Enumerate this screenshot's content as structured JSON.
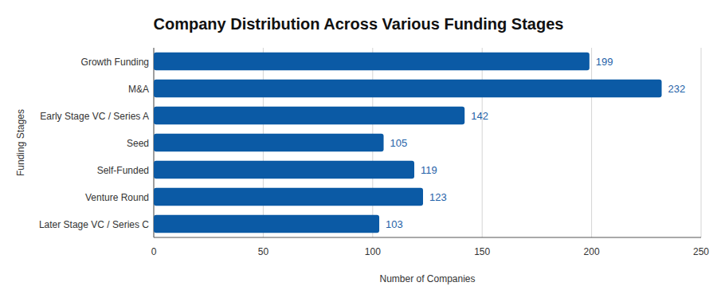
{
  "chart_data": {
    "type": "bar",
    "orientation": "horizontal",
    "title": "Company Distribution Across Various Funding Stages",
    "x_label": "Number of Companies",
    "y_label": "Funding Stages",
    "categories": [
      "Growth Funding",
      "M&A",
      "Early Stage VC / Series A",
      "Seed",
      "Self-Funded",
      "Venture Round",
      "Later Stage VC / Series C"
    ],
    "values": [
      199,
      232,
      142,
      105,
      119,
      123,
      103
    ],
    "color": "#0b5aa5",
    "xlim": [
      0,
      250
    ],
    "xticks": [
      0,
      50,
      100,
      150,
      200,
      250
    ],
    "grid": true,
    "data_labels": true
  }
}
